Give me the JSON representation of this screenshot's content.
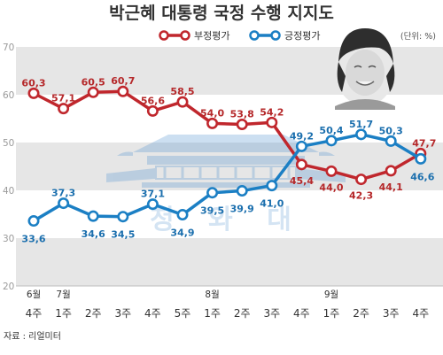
{
  "chart_data": {
    "type": "line",
    "title": "박근혜 대통령 국정 수행 지지도",
    "unit": "(단위: %)",
    "source": "자료 : 리얼미터",
    "ylim": [
      20,
      70
    ],
    "yticks": [
      "20",
      "30",
      "40",
      "50",
      "60",
      "70"
    ],
    "x_weeks": [
      "4주",
      "1주",
      "2주",
      "3주",
      "4주",
      "5주",
      "1주",
      "2주",
      "3주",
      "4주",
      "1주",
      "2주",
      "3주",
      "4주"
    ],
    "months": [
      {
        "label": "6월",
        "index": 0
      },
      {
        "label": "7월",
        "index": 1
      },
      {
        "label": "8월",
        "index": 6
      },
      {
        "label": "9월",
        "index": 10
      }
    ],
    "series": [
      {
        "name": "부정평가",
        "color": "#c0272d",
        "values": [
          60.3,
          57.1,
          60.5,
          60.7,
          56.6,
          58.5,
          54.0,
          53.8,
          54.2,
          45.4,
          44.0,
          42.3,
          44.1,
          47.7
        ],
        "labels": [
          "60,3",
          "57,1",
          "60,5",
          "60,7",
          "56,6",
          "58,5",
          "54,0",
          "53,8",
          "54,2",
          "45,4",
          "44,0",
          "42,3",
          "44,1",
          "47,7"
        ]
      },
      {
        "name": "긍정평가",
        "color": "#1b7fc4",
        "values": [
          33.6,
          37.3,
          34.6,
          34.5,
          37.1,
          34.9,
          39.5,
          39.9,
          41.0,
          49.2,
          50.4,
          51.7,
          50.3,
          46.6
        ],
        "labels": [
          "33,6",
          "37,3",
          "34,6",
          "34,5",
          "37,1",
          "34,9",
          "39,5",
          "39,9",
          "41,0",
          "49,2",
          "50,4",
          "51,7",
          "50,3",
          "46,6"
        ]
      }
    ],
    "watermark_text": "청 와 대"
  }
}
